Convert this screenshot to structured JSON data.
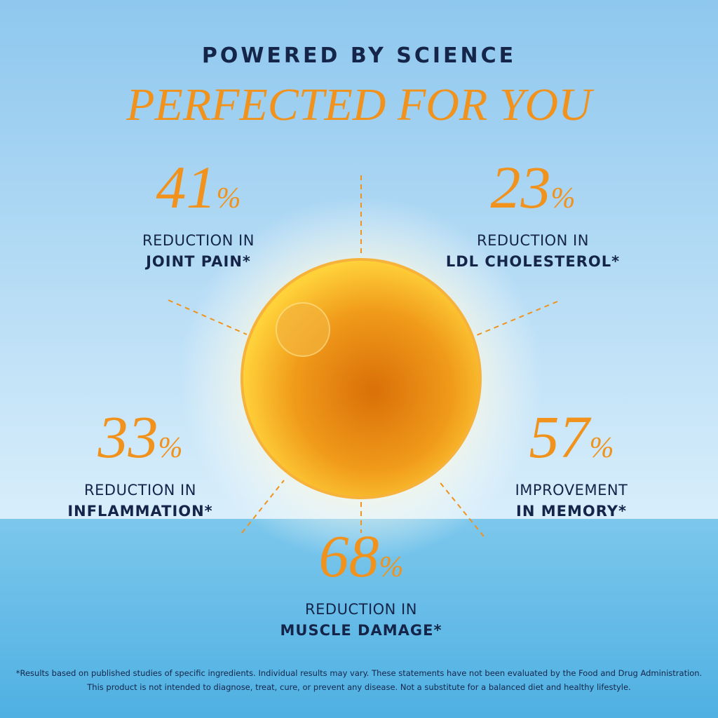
{
  "header": {
    "kicker": "POWERED BY SCIENCE",
    "title": "PERFECTED FOR YOU"
  },
  "stats": [
    {
      "number": "41",
      "unit": "%",
      "line1": "REDUCTION IN",
      "line2": "JOINT PAIN*"
    },
    {
      "number": "23",
      "unit": "%",
      "line1": "REDUCTION IN",
      "line2": "LDL CHOLESTEROL*"
    },
    {
      "number": "33",
      "unit": "%",
      "line1": "REDUCTION IN",
      "line2": "INFLAMMATION*"
    },
    {
      "number": "57",
      "unit": "%",
      "line1": "IMPROVEMENT",
      "line2": "IN MEMORY*"
    },
    {
      "number": "68",
      "unit": "%",
      "line1": "REDUCTION IN",
      "line2": "MUSCLE DAMAGE*"
    }
  ],
  "footnote": [
    "*Results based on published studies of specific ingredients. Individual results may vary. These statements have not been evaluated by the Food and Drug Administration.",
    "This product is not intended to diagnose, treat, cure, or prevent any disease. Not a substitute for a balanced diet and healthy lifestyle."
  ]
}
